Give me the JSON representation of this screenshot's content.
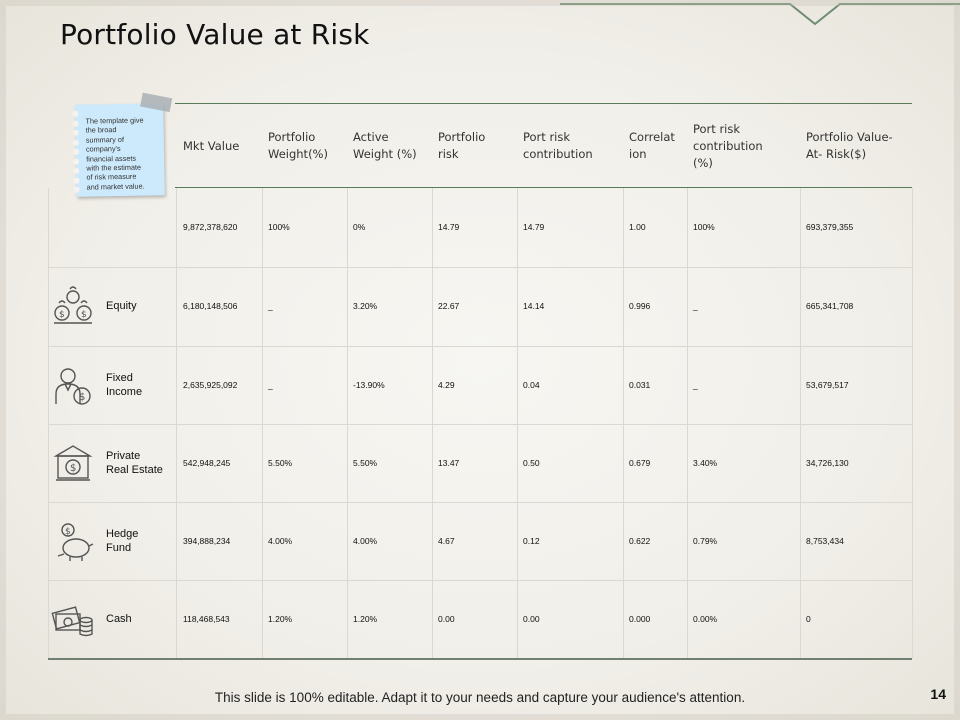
{
  "slide": {
    "title": "Portfolio Value at Risk",
    "footer": "This slide is 100% editable. Adapt it to your needs and capture your audience's attention.",
    "page_number": "14"
  },
  "note": {
    "lines": [
      "The template give",
      "the broad",
      "summary of",
      "company's",
      "financial  assets",
      "with the estimate",
      "of risk measure",
      "and market value."
    ]
  },
  "table": {
    "columns": [
      [
        "Mkt Value"
      ],
      [
        "Portfolio",
        "Weight(%)"
      ],
      [
        "Active",
        "Weight (%)"
      ],
      [
        "Portfolio",
        "risk"
      ],
      [
        "Port risk",
        "contribution"
      ],
      [
        "Correlat",
        "ion"
      ],
      [
        "Port risk",
        "contribution",
        "(%)"
      ],
      [
        "Portfolio Value-",
        "At- Risk($)"
      ]
    ],
    "rows": [
      {
        "label": [],
        "icon": "",
        "cells": [
          "9,872,378,620",
          "100%",
          "0%",
          "14.79",
          "14.79",
          "1.00",
          "100%",
          "693,379,355"
        ]
      },
      {
        "label": [
          "Equity"
        ],
        "icon": "money-bags-icon",
        "cells": [
          "6,180,148,506",
          "_",
          "3.20%",
          "22.67",
          "14.14",
          "0.996",
          "_",
          "665,341,708"
        ]
      },
      {
        "label": [
          "Fixed",
          "Income"
        ],
        "icon": "businessman-dollar-icon",
        "cells": [
          "2,635,925,092",
          "_",
          "-13.90%",
          "4.29",
          "0.04",
          "0.031",
          "_",
          "53,679,517"
        ]
      },
      {
        "label": [
          "Private",
          "Real Estate"
        ],
        "icon": "bank-building-icon",
        "cells": [
          "542,948,245",
          "5.50%",
          "5.50%",
          "13.47",
          "0.50",
          "0.679",
          "3.40%",
          "34,726,130"
        ]
      },
      {
        "label": [
          "Hedge",
          "Fund"
        ],
        "icon": "piggy-bank-icon",
        "cells": [
          "394,888,234",
          "4.00%",
          "4.00%",
          "4.67",
          "0.12",
          "0.622",
          "0.79%",
          "8,753,434"
        ]
      },
      {
        "label": [
          "Cash"
        ],
        "icon": "cash-coins-icon",
        "cells": [
          "118,468,543",
          "1.20%",
          "1.20%",
          "0.00",
          "0.00",
          "0.000",
          "0.00%",
          "0"
        ]
      }
    ]
  },
  "colors": {
    "accent": "#5a7a5c",
    "note": "#cdeafc",
    "rule": "#dad8d1"
  }
}
